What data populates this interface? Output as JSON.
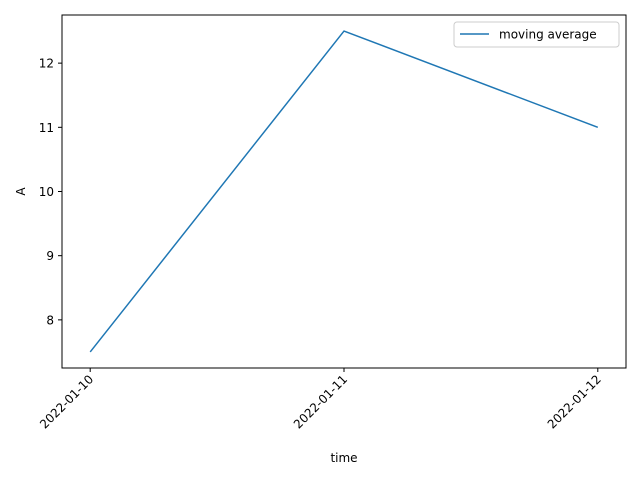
{
  "chart_data": {
    "type": "line",
    "title": "",
    "xlabel": "time",
    "ylabel": "A",
    "x": [
      "2022-01-10",
      "2022-01-11",
      "2022-01-12"
    ],
    "x_tick_labels": [
      "2022-01-10",
      "2022-01-11",
      "2022-01-12"
    ],
    "y_ticks": [
      8,
      9,
      10,
      11,
      12
    ],
    "y_tick_labels": [
      "8",
      "9",
      "10",
      "11",
      "12"
    ],
    "ylim": [
      7.25,
      12.75
    ],
    "grid": false,
    "legend_position": "upper right",
    "series": [
      {
        "name": "moving average",
        "color": "#1f77b4",
        "values": [
          7.5,
          12.5,
          11.0
        ]
      }
    ]
  }
}
